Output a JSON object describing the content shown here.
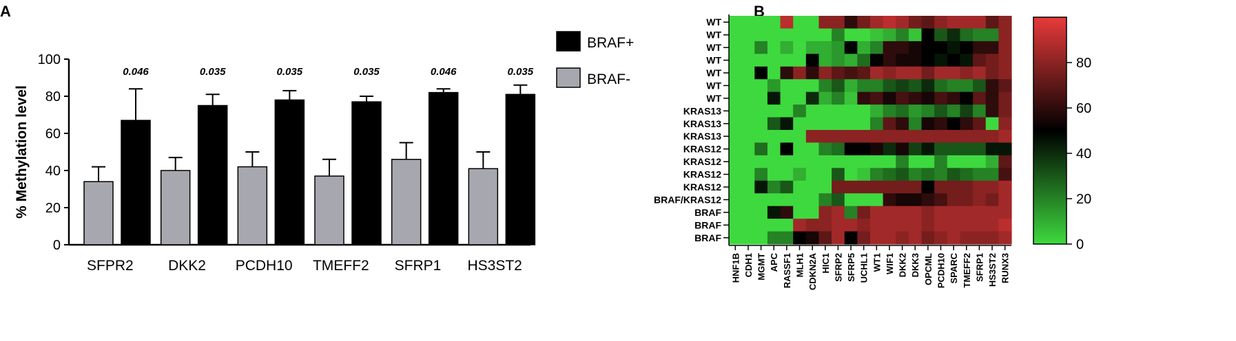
{
  "panels": {
    "a_label": "A",
    "b_label": "B"
  },
  "chart_data": [
    {
      "type": "bar",
      "panel": "A",
      "categories": [
        "SFPR2",
        "DKK2",
        "PCDH10",
        "TMEFF2",
        "SFRP1",
        "HS3ST2"
      ],
      "series": [
        {
          "name": "BRAF-",
          "values": [
            34,
            40,
            42,
            37,
            46,
            41
          ],
          "errors": [
            8,
            7,
            8,
            9,
            9,
            9
          ],
          "color": "#a7a7af"
        },
        {
          "name": "BRAF+",
          "values": [
            67,
            75,
            78,
            77,
            82,
            81
          ],
          "errors": [
            17,
            6,
            5,
            3,
            2,
            5
          ],
          "color": "#000000"
        }
      ],
      "annotations": [
        "0.046",
        "0.035",
        "0.035",
        "0.035",
        "0.046",
        "0.035"
      ],
      "legend_order": [
        "BRAF+",
        "BRAF-"
      ],
      "ylabel": "% Methylation level",
      "ylim": [
        0,
        100
      ],
      "yticks": [
        0,
        20,
        40,
        60,
        80,
        100
      ],
      "legend_position": "right",
      "grid": false
    },
    {
      "type": "heatmap",
      "panel": "B",
      "rows": [
        "WT",
        "WT",
        "WT",
        "WT",
        "WT",
        "WT",
        "WT",
        "KRAS13",
        "KRAS13",
        "KRAS13",
        "KRAS12",
        "KRAS12",
        "KRAS12",
        "KRAS12",
        "BRAF/KRAS12",
        "BRAF",
        "BRAF",
        "BRAF"
      ],
      "columns": [
        "HNF1B",
        "CDH1",
        "MGMT",
        "APC",
        "RASSF1",
        "MLH1",
        "CDKN2A",
        "HIC1",
        "SFRP2",
        "SFRP5",
        "UCHL1",
        "WT1",
        "WIF1",
        "DKK2",
        "DKK3",
        "OPCML",
        "PCDH10",
        "SPARC",
        "TMEFF2",
        "SFRP1",
        "HS3ST2",
        "RUNX3"
      ],
      "values": [
        [
          0,
          0,
          0,
          0,
          90,
          0,
          0,
          80,
          80,
          60,
          75,
          85,
          90,
          85,
          75,
          70,
          80,
          85,
          85,
          85,
          70,
          80
        ],
        [
          0,
          0,
          0,
          0,
          0,
          0,
          0,
          0,
          20,
          0,
          0,
          5,
          10,
          20,
          5,
          50,
          30,
          40,
          25,
          20,
          20,
          80
        ],
        [
          0,
          0,
          20,
          0,
          10,
          0,
          10,
          10,
          15,
          50,
          10,
          20,
          60,
          60,
          55,
          50,
          50,
          45,
          50,
          60,
          60,
          80
        ],
        [
          0,
          0,
          0,
          0,
          0,
          0,
          50,
          10,
          15,
          10,
          25,
          50,
          60,
          55,
          55,
          50,
          45,
          50,
          45,
          70,
          75,
          80
        ],
        [
          0,
          0,
          50,
          0,
          60,
          80,
          60,
          80,
          70,
          65,
          70,
          85,
          80,
          85,
          85,
          75,
          85,
          85,
          80,
          85,
          75,
          80
        ],
        [
          0,
          0,
          0,
          15,
          0,
          0,
          0,
          20,
          30,
          10,
          20,
          20,
          30,
          35,
          30,
          40,
          25,
          20,
          20,
          30,
          60,
          70
        ],
        [
          0,
          0,
          0,
          45,
          0,
          0,
          40,
          10,
          20,
          5,
          60,
          65,
          55,
          65,
          60,
          55,
          65,
          60,
          50,
          70,
          60,
          75
        ],
        [
          0,
          0,
          0,
          0,
          0,
          20,
          0,
          0,
          0,
          0,
          0,
          10,
          20,
          25,
          15,
          20,
          30,
          20,
          35,
          20,
          60,
          75
        ],
        [
          0,
          0,
          0,
          30,
          45,
          0,
          0,
          0,
          0,
          0,
          0,
          20,
          70,
          60,
          20,
          55,
          60,
          50,
          60,
          70,
          0,
          80
        ],
        [
          0,
          0,
          0,
          0,
          0,
          0,
          80,
          80,
          80,
          80,
          80,
          80,
          80,
          80,
          80,
          80,
          80,
          80,
          80,
          80,
          80,
          85
        ],
        [
          0,
          0,
          25,
          0,
          50,
          0,
          0,
          20,
          25,
          50,
          50,
          55,
          40,
          55,
          35,
          45,
          30,
          30,
          30,
          30,
          45,
          45
        ],
        [
          0,
          0,
          0,
          0,
          0,
          0,
          0,
          0,
          0,
          0,
          0,
          0,
          0,
          20,
          0,
          0,
          20,
          0,
          0,
          0,
          10,
          70
        ],
        [
          0,
          0,
          20,
          0,
          0,
          10,
          0,
          0,
          30,
          0,
          5,
          20,
          25,
          30,
          20,
          25,
          20,
          30,
          25,
          20,
          20,
          65
        ],
        [
          0,
          0,
          45,
          20,
          30,
          0,
          0,
          0,
          75,
          75,
          75,
          75,
          75,
          75,
          75,
          50,
          75,
          75,
          75,
          80,
          80,
          85
        ],
        [
          0,
          0,
          0,
          0,
          0,
          0,
          0,
          20,
          30,
          0,
          0,
          0,
          60,
          55,
          55,
          60,
          65,
          75,
          75,
          80,
          75,
          85
        ],
        [
          0,
          0,
          0,
          45,
          60,
          0,
          0,
          80,
          85,
          20,
          75,
          85,
          85,
          85,
          85,
          80,
          85,
          85,
          85,
          85,
          85,
          85
        ],
        [
          0,
          0,
          0,
          0,
          0,
          85,
          80,
          80,
          85,
          85,
          80,
          85,
          85,
          85,
          85,
          80,
          85,
          85,
          85,
          85,
          85,
          90
        ],
        [
          0,
          0,
          0,
          20,
          20,
          50,
          55,
          70,
          85,
          50,
          75,
          85,
          85,
          80,
          85,
          75,
          80,
          85,
          80,
          80,
          80,
          85
        ]
      ],
      "colorbar": {
        "ticks": [
          0,
          20,
          40,
          60,
          80
        ],
        "range": [
          0,
          100
        ],
        "low_color": "#3ed93e",
        "mid_color": "#000000",
        "high_color": "#e83a3a"
      }
    }
  ]
}
